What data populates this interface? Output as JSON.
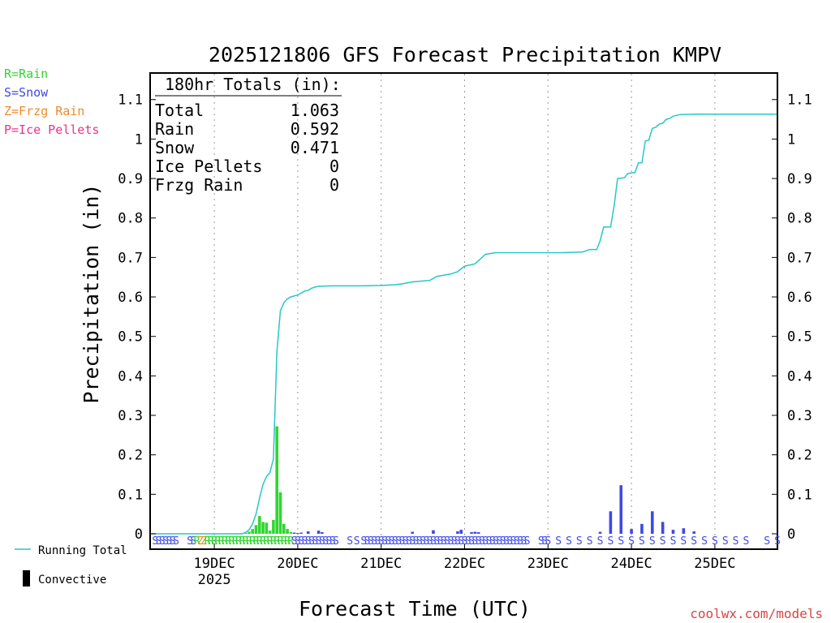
{
  "chart_data": {
    "type": "bar",
    "title": "2025121806 GFS Forecast Precipitation KMPV",
    "xlabel": "Forecast Time (UTC)",
    "ylabel": "Precipitation (in)",
    "ylim": [
      0,
      1.17
    ],
    "xlim_hours": [
      0,
      180
    ],
    "yticks": [
      "0",
      "0.1",
      "0.2",
      "0.3",
      "0.4",
      "0.5",
      "0.6",
      "0.7",
      "0.8",
      "0.9",
      "1",
      "1.1"
    ],
    "yticks_right": [
      "0",
      "0.1",
      "0.2",
      "0.3",
      "0.4",
      "0.5",
      "0.6",
      "0.7",
      "0.8",
      "0.9",
      "1",
      "1.1"
    ],
    "xticks": [
      {
        "hour": 18,
        "label": "19DEC",
        "sub": "2025"
      },
      {
        "hour": 42,
        "label": "20DEC",
        "sub": ""
      },
      {
        "hour": 66,
        "label": "21DEC",
        "sub": ""
      },
      {
        "hour": 90,
        "label": "22DEC",
        "sub": ""
      },
      {
        "hour": 114,
        "label": "23DEC",
        "sub": ""
      },
      {
        "hour": 138,
        "label": "24DEC",
        "sub": ""
      },
      {
        "hour": 162,
        "label": "25DEC",
        "sub": ""
      }
    ],
    "totals_box": {
      "heading": "180hr Totals (in):",
      "rows": [
        {
          "label": "Total",
          "value": "1.063"
        },
        {
          "label": "Rain",
          "value": "0.592"
        },
        {
          "label": "Snow",
          "value": "0.471"
        },
        {
          "label": "Ice Pellets",
          "value": "0"
        },
        {
          "label": "Frzg Rain",
          "value": "0"
        }
      ]
    },
    "legend_types": [
      {
        "label": "R=Rain",
        "color": "#2fd62f"
      },
      {
        "label": "S=Snow",
        "color": "#3f48e8"
      },
      {
        "label": "Z=Frzg Rain",
        "color": "#f08a2a"
      },
      {
        "label": "P=Ice Pellets",
        "color": "#e8358a"
      }
    ],
    "legend_series": [
      {
        "label": "Running Total",
        "color": "#27c7c7"
      },
      {
        "label": "Convective",
        "color": "#000000"
      }
    ],
    "rain_bars": [
      {
        "hour": 27,
        "value": 0.002
      },
      {
        "hour": 28,
        "value": 0.005
      },
      {
        "hour": 29,
        "value": 0.012
      },
      {
        "hour": 30,
        "value": 0.022
      },
      {
        "hour": 31,
        "value": 0.045
      },
      {
        "hour": 32,
        "value": 0.03
      },
      {
        "hour": 33,
        "value": 0.028
      },
      {
        "hour": 34,
        "value": 0.008
      },
      {
        "hour": 35,
        "value": 0.035
      },
      {
        "hour": 36,
        "value": 0.272
      },
      {
        "hour": 37,
        "value": 0.105
      },
      {
        "hour": 38,
        "value": 0.025
      },
      {
        "hour": 39,
        "value": 0.012
      },
      {
        "hour": 40,
        "value": 0.004
      }
    ],
    "snow_bars": [
      {
        "hour": 41,
        "value": 0.003
      },
      {
        "hour": 42,
        "value": 0.002
      },
      {
        "hour": 43,
        "value": 0.003
      },
      {
        "hour": 45,
        "value": 0.006
      },
      {
        "hour": 48,
        "value": 0.008
      },
      {
        "hour": 49,
        "value": 0.004
      },
      {
        "hour": 75,
        "value": 0.005
      },
      {
        "hour": 81,
        "value": 0.009
      },
      {
        "hour": 88,
        "value": 0.006
      },
      {
        "hour": 89,
        "value": 0.01
      },
      {
        "hour": 92,
        "value": 0.004
      },
      {
        "hour": 93,
        "value": 0.005
      },
      {
        "hour": 94,
        "value": 0.004
      },
      {
        "hour": 129,
        "value": 0.005
      },
      {
        "hour": 132,
        "value": 0.057
      },
      {
        "hour": 135,
        "value": 0.123
      },
      {
        "hour": 138,
        "value": 0.012
      },
      {
        "hour": 141,
        "value": 0.025
      },
      {
        "hour": 144,
        "value": 0.057
      },
      {
        "hour": 147,
        "value": 0.03
      },
      {
        "hour": 150,
        "value": 0.01
      },
      {
        "hour": 153,
        "value": 0.014
      },
      {
        "hour": 156,
        "value": 0.006
      }
    ],
    "running_total": [
      [
        0,
        0
      ],
      [
        26,
        0
      ],
      [
        27,
        0.003
      ],
      [
        28,
        0.01
      ],
      [
        29,
        0.025
      ],
      [
        30,
        0.05
      ],
      [
        31,
        0.09
      ],
      [
        32,
        0.125
      ],
      [
        33,
        0.145
      ],
      [
        34,
        0.155
      ],
      [
        35,
        0.19
      ],
      [
        36,
        0.46
      ],
      [
        37,
        0.565
      ],
      [
        38,
        0.585
      ],
      [
        39,
        0.595
      ],
      [
        40,
        0.6
      ],
      [
        42,
        0.605
      ],
      [
        43,
        0.61
      ],
      [
        44,
        0.615
      ],
      [
        45,
        0.617
      ],
      [
        46,
        0.622
      ],
      [
        47,
        0.625
      ],
      [
        48,
        0.627
      ],
      [
        52,
        0.628
      ],
      [
        60,
        0.628
      ],
      [
        66,
        0.629
      ],
      [
        70,
        0.631
      ],
      [
        72,
        0.633
      ],
      [
        75,
        0.638
      ],
      [
        80,
        0.642
      ],
      [
        82,
        0.652
      ],
      [
        86,
        0.658
      ],
      [
        88,
        0.664
      ],
      [
        90,
        0.678
      ],
      [
        93,
        0.684
      ],
      [
        96,
        0.708
      ],
      [
        99,
        0.712
      ],
      [
        104,
        0.712
      ],
      [
        110,
        0.712
      ],
      [
        118,
        0.712
      ],
      [
        124,
        0.714
      ],
      [
        126,
        0.72
      ],
      [
        128,
        0.72
      ],
      [
        129,
        0.742
      ],
      [
        130,
        0.777
      ],
      [
        132,
        0.777
      ],
      [
        133,
        0.83
      ],
      [
        134,
        0.9
      ],
      [
        136,
        0.902
      ],
      [
        137,
        0.913
      ],
      [
        139,
        0.915
      ],
      [
        140,
        0.94
      ],
      [
        141,
        0.94
      ],
      [
        142,
        0.995
      ],
      [
        143,
        0.997
      ],
      [
        144,
        1.027
      ],
      [
        145,
        1.03
      ],
      [
        146,
        1.038
      ],
      [
        147,
        1.04
      ],
      [
        148,
        1.05
      ],
      [
        149,
        1.052
      ],
      [
        150,
        1.058
      ],
      [
        152,
        1.062
      ],
      [
        156,
        1.063
      ],
      [
        170,
        1.063
      ],
      [
        180,
        1.063
      ]
    ],
    "ptype_strip": [
      {
        "hour": 1,
        "code": "S"
      },
      {
        "hour": 2,
        "code": "S"
      },
      {
        "hour": 3,
        "code": "S"
      },
      {
        "hour": 4,
        "code": "S"
      },
      {
        "hour": 5,
        "code": "S"
      },
      {
        "hour": 6,
        "code": "S"
      },
      {
        "hour": 7,
        "code": "S"
      },
      {
        "hour": 11,
        "code": "S"
      },
      {
        "hour": 12,
        "code": "S"
      },
      {
        "hour": 13,
        "code": "R"
      },
      {
        "hour": 14,
        "code": "Z"
      },
      {
        "hour": 15,
        "code": "Z"
      },
      {
        "hour": 16,
        "code": "R"
      },
      {
        "hour": 17,
        "code": "R"
      },
      {
        "hour": 18,
        "code": "R"
      },
      {
        "hour": 19,
        "code": "R"
      },
      {
        "hour": 20,
        "code": "R"
      },
      {
        "hour": 21,
        "code": "R"
      },
      {
        "hour": 22,
        "code": "R"
      },
      {
        "hour": 23,
        "code": "R"
      },
      {
        "hour": 24,
        "code": "R"
      },
      {
        "hour": 25,
        "code": "R"
      },
      {
        "hour": 26,
        "code": "R"
      },
      {
        "hour": 27,
        "code": "R"
      },
      {
        "hour": 28,
        "code": "R"
      },
      {
        "hour": 29,
        "code": "R"
      },
      {
        "hour": 30,
        "code": "R"
      },
      {
        "hour": 31,
        "code": "R"
      },
      {
        "hour": 32,
        "code": "R"
      },
      {
        "hour": 33,
        "code": "R"
      },
      {
        "hour": 34,
        "code": "R"
      },
      {
        "hour": 35,
        "code": "R"
      },
      {
        "hour": 36,
        "code": "R"
      },
      {
        "hour": 37,
        "code": "R"
      },
      {
        "hour": 38,
        "code": "R"
      },
      {
        "hour": 39,
        "code": "R"
      },
      {
        "hour": 40,
        "code": "R"
      },
      {
        "hour": 41,
        "code": "S"
      },
      {
        "hour": 42,
        "code": "S"
      },
      {
        "hour": 43,
        "code": "S"
      },
      {
        "hour": 44,
        "code": "S"
      },
      {
        "hour": 45,
        "code": "S"
      },
      {
        "hour": 46,
        "code": "S"
      },
      {
        "hour": 47,
        "code": "S"
      },
      {
        "hour": 48,
        "code": "S"
      },
      {
        "hour": 49,
        "code": "S"
      },
      {
        "hour": 50,
        "code": "S"
      },
      {
        "hour": 51,
        "code": "S"
      },
      {
        "hour": 52,
        "code": "S"
      },
      {
        "hour": 53,
        "code": "S"
      },
      {
        "hour": 57,
        "code": "S"
      },
      {
        "hour": 59,
        "code": "S"
      },
      {
        "hour": 61,
        "code": "S"
      },
      {
        "hour": 62,
        "code": "S"
      },
      {
        "hour": 63,
        "code": "S"
      },
      {
        "hour": 64,
        "code": "S"
      },
      {
        "hour": 65,
        "code": "S"
      },
      {
        "hour": 66,
        "code": "S"
      },
      {
        "hour": 67,
        "code": "S"
      },
      {
        "hour": 68,
        "code": "S"
      },
      {
        "hour": 69,
        "code": "S"
      },
      {
        "hour": 70,
        "code": "S"
      },
      {
        "hour": 71,
        "code": "S"
      },
      {
        "hour": 72,
        "code": "S"
      },
      {
        "hour": 73,
        "code": "S"
      },
      {
        "hour": 74,
        "code": "S"
      },
      {
        "hour": 75,
        "code": "S"
      },
      {
        "hour": 76,
        "code": "S"
      },
      {
        "hour": 77,
        "code": "S"
      },
      {
        "hour": 78,
        "code": "S"
      },
      {
        "hour": 79,
        "code": "S"
      },
      {
        "hour": 80,
        "code": "S"
      },
      {
        "hour": 81,
        "code": "S"
      },
      {
        "hour": 82,
        "code": "S"
      },
      {
        "hour": 83,
        "code": "S"
      },
      {
        "hour": 84,
        "code": "S"
      },
      {
        "hour": 85,
        "code": "S"
      },
      {
        "hour": 86,
        "code": "S"
      },
      {
        "hour": 87,
        "code": "S"
      },
      {
        "hour": 88,
        "code": "S"
      },
      {
        "hour": 89,
        "code": "S"
      },
      {
        "hour": 90,
        "code": "S"
      },
      {
        "hour": 91,
        "code": "S"
      },
      {
        "hour": 92,
        "code": "S"
      },
      {
        "hour": 93,
        "code": "S"
      },
      {
        "hour": 94,
        "code": "S"
      },
      {
        "hour": 95,
        "code": "S"
      },
      {
        "hour": 96,
        "code": "S"
      },
      {
        "hour": 97,
        "code": "S"
      },
      {
        "hour": 98,
        "code": "S"
      },
      {
        "hour": 99,
        "code": "S"
      },
      {
        "hour": 100,
        "code": "S"
      },
      {
        "hour": 101,
        "code": "S"
      },
      {
        "hour": 102,
        "code": "S"
      },
      {
        "hour": 103,
        "code": "S"
      },
      {
        "hour": 104,
        "code": "S"
      },
      {
        "hour": 105,
        "code": "S"
      },
      {
        "hour": 106,
        "code": "S"
      },
      {
        "hour": 107,
        "code": "S"
      },
      {
        "hour": 108,
        "code": "S"
      },
      {
        "hour": 112,
        "code": "S"
      },
      {
        "hour": 113,
        "code": "S"
      },
      {
        "hour": 114,
        "code": "S"
      },
      {
        "hour": 117,
        "code": "S"
      },
      {
        "hour": 120,
        "code": "S"
      },
      {
        "hour": 123,
        "code": "S"
      },
      {
        "hour": 126,
        "code": "S"
      },
      {
        "hour": 129,
        "code": "S"
      },
      {
        "hour": 132,
        "code": "S"
      },
      {
        "hour": 135,
        "code": "S"
      },
      {
        "hour": 138,
        "code": "S"
      },
      {
        "hour": 141,
        "code": "S"
      },
      {
        "hour": 144,
        "code": "S"
      },
      {
        "hour": 147,
        "code": "S"
      },
      {
        "hour": 150,
        "code": "S"
      },
      {
        "hour": 153,
        "code": "S"
      },
      {
        "hour": 156,
        "code": "S"
      },
      {
        "hour": 159,
        "code": "S"
      },
      {
        "hour": 162,
        "code": "S"
      },
      {
        "hour": 165,
        "code": "S"
      },
      {
        "hour": 168,
        "code": "S"
      },
      {
        "hour": 171,
        "code": "S"
      },
      {
        "hour": 177,
        "code": "S"
      },
      {
        "hour": 180,
        "code": "S"
      }
    ],
    "credit": "coolwx.com/models"
  }
}
